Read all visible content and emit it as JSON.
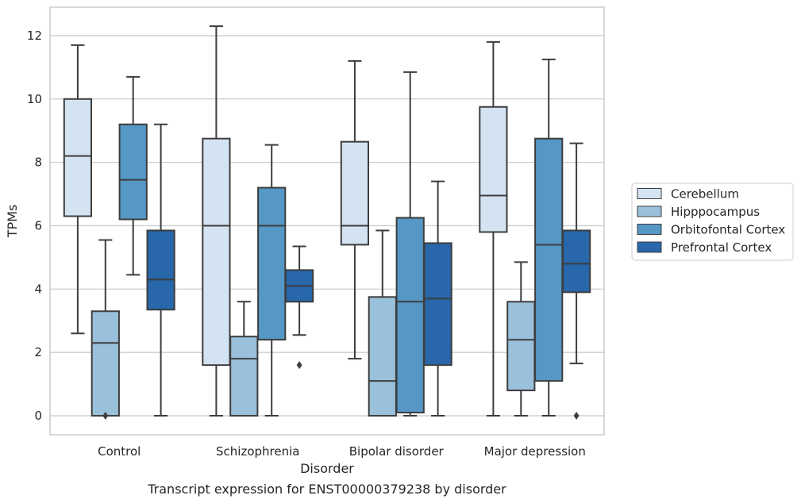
{
  "caption": "Transcript expression for ENST00000379238 by disorder",
  "chart_data": {
    "type": "box",
    "xlabel": "Disorder",
    "ylabel": "TPMs",
    "ylim": [
      -0.6,
      12.9
    ],
    "yticks": [
      0,
      2,
      4,
      6,
      8,
      10,
      12
    ],
    "grid": "horizontal",
    "legend_position": "right",
    "categories": [
      "Control",
      "Schizophrenia",
      "Bipolar disorder",
      "Major depression"
    ],
    "series": [
      {
        "name": "Cerebellum",
        "color": "#d4e3f2",
        "boxes": [
          {
            "whisker_low": 2.6,
            "q1": 6.3,
            "median": 8.2,
            "q3": 10.0,
            "whisker_high": 11.7,
            "outliers": []
          },
          {
            "whisker_low": 0.0,
            "q1": 1.6,
            "median": 6.0,
            "q3": 8.75,
            "whisker_high": 12.3,
            "outliers": []
          },
          {
            "whisker_low": 1.8,
            "q1": 5.4,
            "median": 6.0,
            "q3": 8.65,
            "whisker_high": 11.2,
            "outliers": []
          },
          {
            "whisker_low": 0.0,
            "q1": 5.8,
            "median": 6.95,
            "q3": 9.75,
            "whisker_high": 11.8,
            "outliers": []
          }
        ]
      },
      {
        "name": "Hipppocampus",
        "color": "#9ac1db",
        "boxes": [
          {
            "whisker_low": 0.0,
            "q1": 0.0,
            "median": 2.3,
            "q3": 3.3,
            "whisker_high": 5.55,
            "outliers": [
              0.0
            ]
          },
          {
            "whisker_low": 0.0,
            "q1": 0.0,
            "median": 1.8,
            "q3": 2.5,
            "whisker_high": 3.6,
            "outliers": []
          },
          {
            "whisker_low": 0.0,
            "q1": 0.0,
            "median": 1.1,
            "q3": 3.75,
            "whisker_high": 5.85,
            "outliers": []
          },
          {
            "whisker_low": 0.0,
            "q1": 0.8,
            "median": 2.4,
            "q3": 3.6,
            "whisker_high": 4.85,
            "outliers": []
          }
        ]
      },
      {
        "name": "Orbitofontal Cortex",
        "color": "#5597c5",
        "boxes": [
          {
            "whisker_low": 4.45,
            "q1": 6.2,
            "median": 7.45,
            "q3": 9.2,
            "whisker_high": 10.7,
            "outliers": []
          },
          {
            "whisker_low": 0.0,
            "q1": 2.4,
            "median": 6.0,
            "q3": 7.2,
            "whisker_high": 8.55,
            "outliers": []
          },
          {
            "whisker_low": 0.0,
            "q1": 0.1,
            "median": 3.6,
            "q3": 6.25,
            "whisker_high": 10.85,
            "outliers": []
          },
          {
            "whisker_low": 0.0,
            "q1": 1.1,
            "median": 5.4,
            "q3": 8.75,
            "whisker_high": 11.25,
            "outliers": []
          }
        ]
      },
      {
        "name": "Prefrontal Cortex",
        "color": "#2767aa",
        "boxes": [
          {
            "whisker_low": 0.0,
            "q1": 3.35,
            "median": 4.3,
            "q3": 5.85,
            "whisker_high": 9.2,
            "outliers": []
          },
          {
            "whisker_low": 2.55,
            "q1": 3.6,
            "median": 4.1,
            "q3": 4.6,
            "whisker_high": 5.35,
            "outliers": [
              1.6
            ]
          },
          {
            "whisker_low": 0.0,
            "q1": 1.6,
            "median": 3.7,
            "q3": 5.45,
            "whisker_high": 7.4,
            "outliers": []
          },
          {
            "whisker_low": 1.65,
            "q1": 3.9,
            "median": 4.8,
            "q3": 5.85,
            "whisker_high": 8.6,
            "outliers": [
              0.0
            ]
          }
        ]
      }
    ]
  }
}
